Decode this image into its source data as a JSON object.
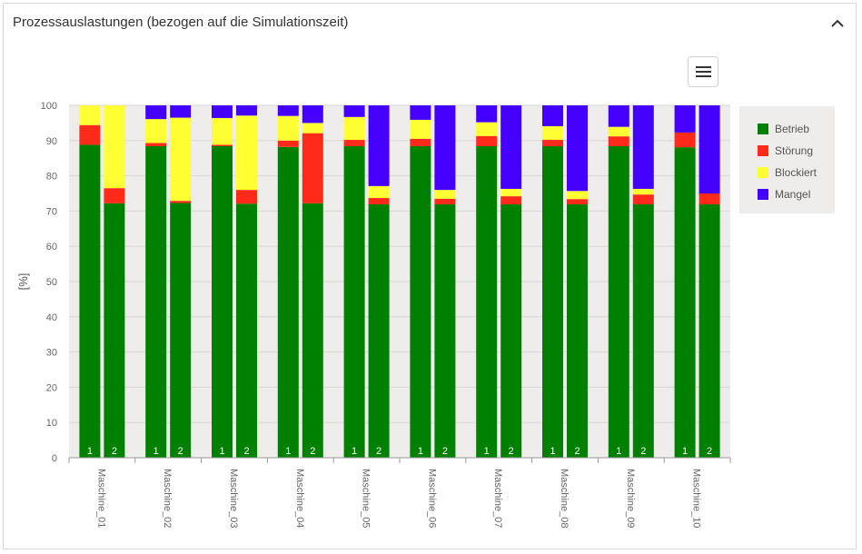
{
  "panel": {
    "title": "Prozessauslastungen (bezogen auf die Simulationszeit)"
  },
  "chart_data": {
    "type": "bar",
    "stacked": true,
    "ylabel": "[%]",
    "xlabel": "",
    "ylim": [
      0,
      100
    ],
    "yticks": [
      0,
      10,
      20,
      30,
      40,
      50,
      60,
      70,
      80,
      90,
      100
    ],
    "grid": true,
    "legend_position": "right",
    "categories": [
      "Maschine_01",
      "Maschine_02",
      "Maschine_03",
      "Maschine_04",
      "Maschine_05",
      "Maschine_06",
      "Maschine_07",
      "Maschine_08",
      "Maschine_09",
      "Maschine_10"
    ],
    "bar_labels": [
      "1",
      "2"
    ],
    "colors": {
      "Betrieb": "#008000",
      "Störung": "#ff2a1a",
      "Blockiert": "#ffff33",
      "Mangel": "#4400ff"
    },
    "series": [
      {
        "name": "Betrieb",
        "values": [
          [
            88.8,
            72.2
          ],
          [
            88.4,
            72.3
          ],
          [
            88.4,
            72.1
          ],
          [
            88.2,
            72.2
          ],
          [
            88.4,
            71.9
          ],
          [
            88.4,
            71.9
          ],
          [
            88.4,
            71.9
          ],
          [
            88.4,
            71.9
          ],
          [
            88.4,
            71.9
          ],
          [
            88.1,
            71.9
          ]
        ]
      },
      {
        "name": "Störung",
        "values": [
          [
            5.6,
            4.3
          ],
          [
            0.9,
            0.6
          ],
          [
            0.4,
            3.9
          ],
          [
            1.8,
            19.9
          ],
          [
            1.8,
            1.8
          ],
          [
            2.1,
            1.6
          ],
          [
            2.9,
            2.3
          ],
          [
            1.8,
            1.5
          ],
          [
            2.8,
            2.8
          ],
          [
            4.2,
            3.1
          ]
        ]
      },
      {
        "name": "Blockiert",
        "values": [
          [
            5.6,
            23.5
          ],
          [
            6.8,
            23.6
          ],
          [
            7.6,
            21.1
          ],
          [
            7.0,
            2.9
          ],
          [
            6.5,
            3.4
          ],
          [
            5.4,
            2.5
          ],
          [
            3.9,
            2.1
          ],
          [
            3.9,
            2.3
          ],
          [
            2.7,
            1.6
          ],
          [
            0.0,
            0.0
          ]
        ]
      },
      {
        "name": "Mangel",
        "values": [
          [
            0.0,
            0.0
          ],
          [
            3.9,
            3.5
          ],
          [
            3.6,
            2.9
          ],
          [
            3.0,
            5.0
          ],
          [
            3.3,
            22.9
          ],
          [
            4.1,
            24.0
          ],
          [
            4.8,
            23.7
          ],
          [
            5.9,
            24.3
          ],
          [
            6.1,
            23.7
          ],
          [
            7.7,
            25.0
          ]
        ]
      }
    ]
  }
}
